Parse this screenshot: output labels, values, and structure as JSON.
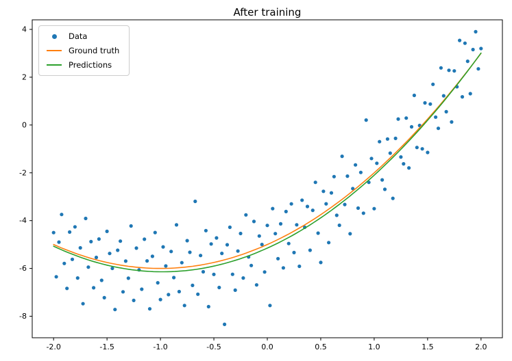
{
  "figure": {
    "background": "#ffffff"
  },
  "chart_data": {
    "type": "scatter",
    "title": "After training",
    "xlabel": "",
    "ylabel": "",
    "xlim": [
      -2.2,
      2.2
    ],
    "ylim": [
      -8.9,
      4.4
    ],
    "grid": false,
    "xticks": [
      -2.0,
      -1.5,
      -1.0,
      -0.5,
      0.0,
      0.5,
      1.0,
      1.5,
      2.0
    ],
    "xtick_labels": [
      "-2.0",
      "-1.5",
      "-1.0",
      "-0.5",
      "0.0",
      "0.5",
      "1.0",
      "1.5",
      "2.0"
    ],
    "yticks": [
      -8,
      -6,
      -4,
      -2,
      0,
      2,
      4
    ],
    "ytick_labels": [
      "-8",
      "-6",
      "-4",
      "-2",
      "0",
      "2",
      "4"
    ],
    "legend": {
      "position": "upper-left",
      "items": [
        {
          "label": "Data",
          "marker": "dot",
          "color": "#1f77b4"
        },
        {
          "label": "Ground truth",
          "marker": "line",
          "color": "#ff7f0e"
        },
        {
          "label": "Predictions",
          "marker": "line",
          "color": "#2ca02c"
        }
      ]
    },
    "series": [
      {
        "name": "Data",
        "type": "scatter",
        "color": "#1f77b4",
        "marker_radius": 2.6,
        "x_start": -2.0,
        "x_end": 2.0,
        "n": 161,
        "f_coeffs": [
          1.0,
          2.0,
          -5.0
        ],
        "noise": [
          0.5,
          -1.3,
          0.2,
          1.4,
          -0.6,
          -1.6,
          0.8,
          -0.3,
          1.1,
          -1.0,
          0.3,
          -2.0,
          1.6,
          -0.4,
          0.7,
          -1.2,
          0.1,
          0.9,
          -0.8,
          -1.5,
          1.3,
          0.4,
          -0.2,
          -1.9,
          0.6,
          1.0,
          -1.1,
          0.2,
          -0.5,
          1.7,
          -1.4,
          0.8,
          -0.1,
          -0.9,
          1.2,
          0.3,
          -1.7,
          0.5,
          1.5,
          -0.6,
          -1.3,
          0.9,
          0.1,
          -1.1,
          0.7,
          -0.4,
          1.8,
          -1.0,
          0.2,
          -1.6,
          1.1,
          0.6,
          -0.8,
          2.7,
          -1.2,
          0.4,
          -0.3,
          1.4,
          -1.8,
          0.8,
          -0.5,
          1.0,
          -1.1,
          0.3,
          -2.7,
          0.6,
          1.3,
          -0.7,
          -1.4,
          0.2,
          0.9,
          -1.0,
          1.6,
          -0.2,
          -0.6,
          1.2,
          -1.5,
          0.5,
          0.1,
          -1.1,
          0.8,
          -2.6,
          1.4,
          0.3,
          -0.8,
          0.6,
          -1.3,
          1.0,
          -0.4,
          1.2,
          -0.9,
          0.2,
          -1.6,
          1.1,
          -0.1,
          0.7,
          -1.2,
          0.4,
          1.5,
          -0.7,
          -2.0,
          0.9,
          0.3,
          -1.4,
          0.6,
          1.2,
          -0.5,
          -1.0,
          1.8,
          -0.3,
          0.8,
          -1.7,
          0.1,
          1.0,
          -0.9,
          0.5,
          -1.3,
          2.5,
          -0.2,
          0.7,
          -1.5,
          0.3,
          1.1,
          -0.6,
          -1.1,
          0.9,
          0.2,
          -1.8,
          0.6,
          1.3,
          -0.4,
          -0.8,
          1.0,
          -1.2,
          0.4,
          1.6,
          -0.7,
          0.1,
          -1.0,
          0.8,
          -1.4,
          0.5,
          1.2,
          -0.3,
          -0.9,
          1.5,
          0.2,
          -0.6,
          1.0,
          -1.3,
          0.7,
          -0.1,
          1.7,
          -0.8,
          1.3,
          0.4,
          -1.1,
          0.6,
          1.2,
          -0.5,
          0.2
        ]
      },
      {
        "name": "Ground truth",
        "type": "line",
        "color": "#ff7f0e",
        "width": 1.6,
        "x_start": -2.0,
        "x_end": 2.0,
        "coeffs": [
          1.0,
          2.0,
          -5.0
        ]
      },
      {
        "name": "Predictions",
        "type": "line",
        "color": "#2ca02c",
        "width": 1.6,
        "x_start": -2.0,
        "x_end": 2.0,
        "coeffs": [
          1.03,
          2.02,
          -5.15
        ]
      }
    ]
  }
}
